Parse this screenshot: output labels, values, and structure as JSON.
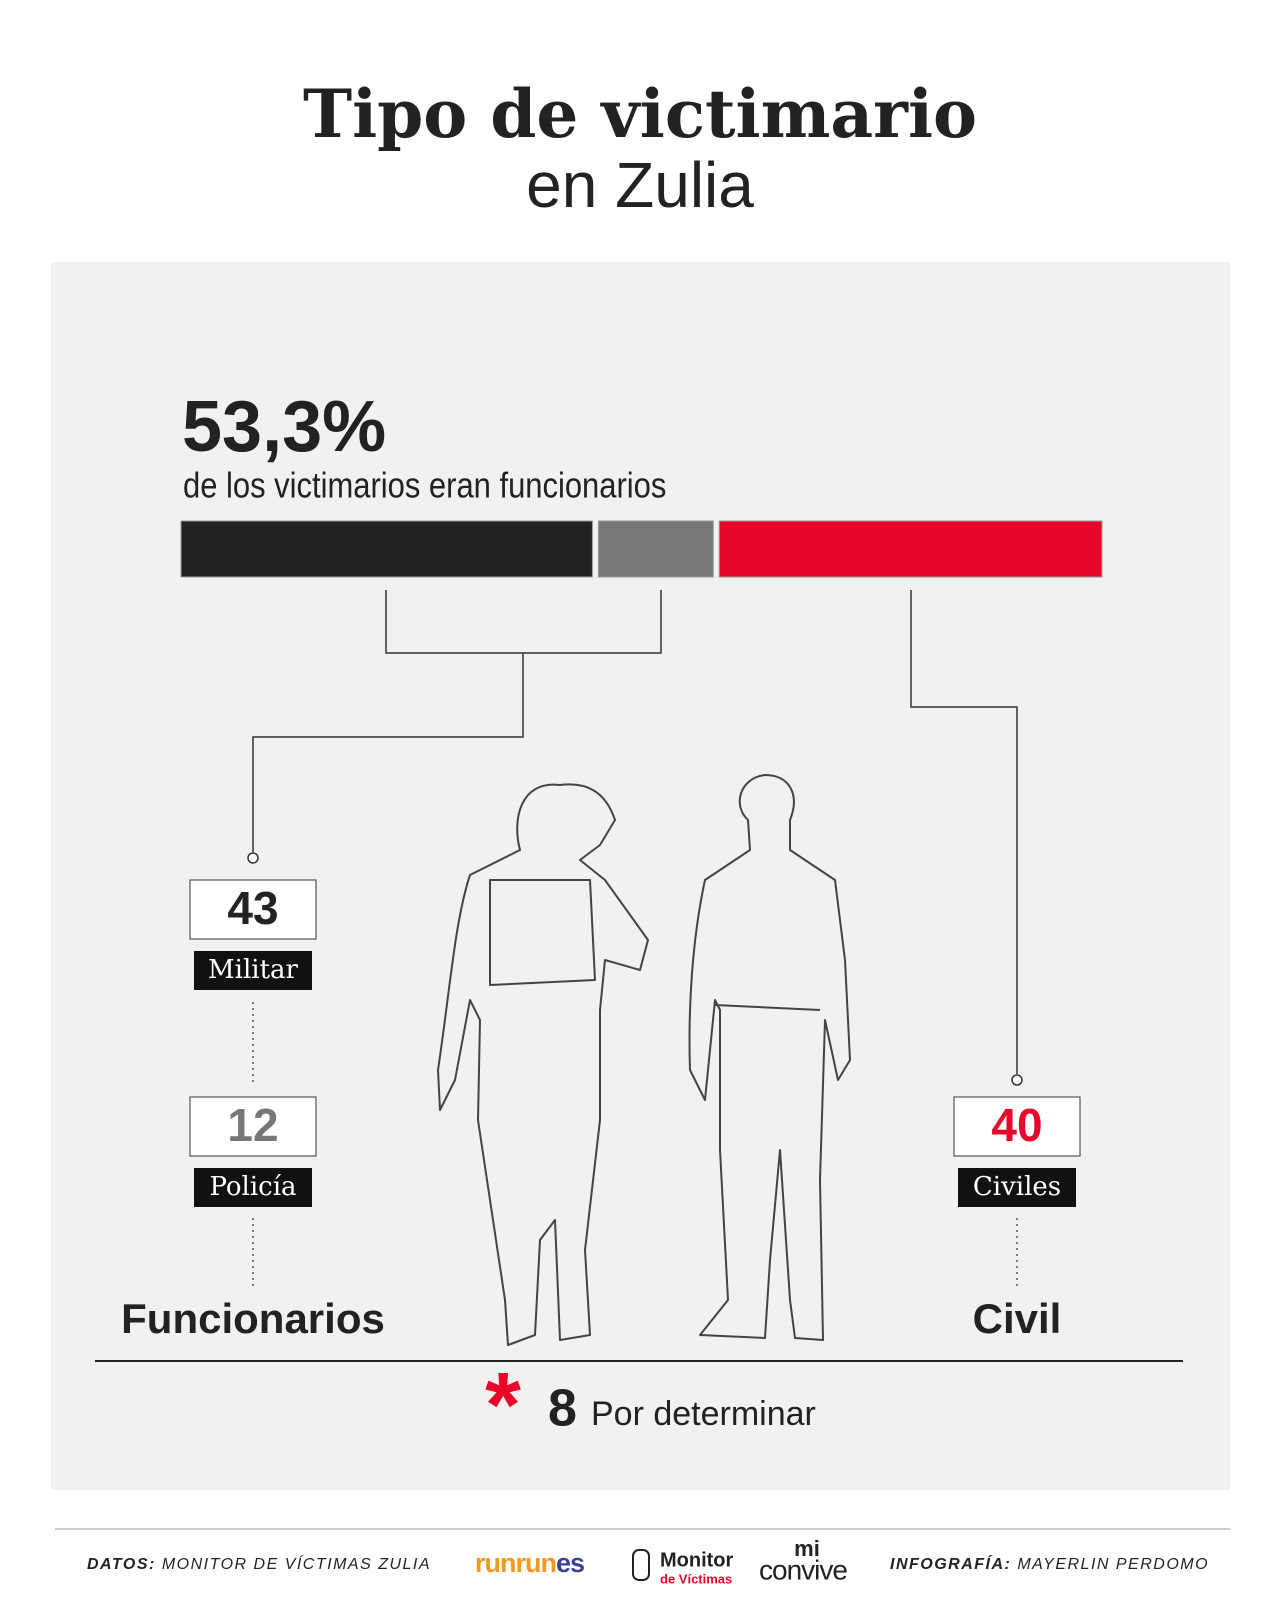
{
  "chart_data": {
    "type": "stacked-bar",
    "title": "Tipo de victimario",
    "subtitle": "en Zulia",
    "highlight": "53,3%",
    "highlight_text": "de los victimarios eran funcionarios",
    "series": [
      {
        "name": "Militar",
        "color": "#222222",
        "values": [
          43
        ]
      },
      {
        "name": "Policía",
        "color": "#777777",
        "values": [
          12
        ]
      },
      {
        "name": "Civiles",
        "color": "#e8062a",
        "values": [
          40
        ]
      }
    ],
    "groups": [
      "Funcionarios",
      "Civil"
    ],
    "undetermined": {
      "value": 8,
      "label": "Por determinar"
    }
  },
  "footer": {
    "data_label": "DATOS:",
    "data_source": "MONITOR DE VÍCTIMAS ZULIA",
    "logos": [
      "runrun",
      "es",
      "Monitor",
      "de Víctimas",
      "mi",
      "convive"
    ],
    "credit_label": "INFOGRAFÍA:",
    "credit": "MAYERLIN PERDOMO"
  }
}
